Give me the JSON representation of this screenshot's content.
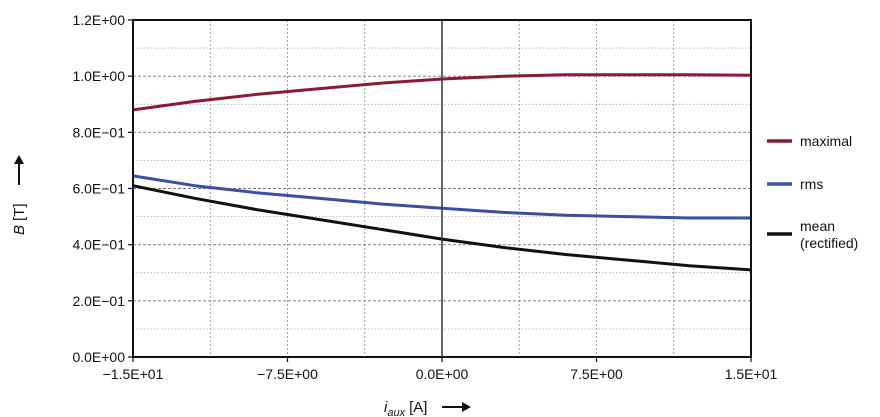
{
  "chart_data": {
    "type": "line",
    "x_ticks": [
      "−1.5E+01",
      "−7.5E+00",
      "0.0E+00",
      "7.5E+00",
      "1.5E+01"
    ],
    "y_ticks": [
      "0.0E+00",
      "2.0E−01",
      "4.0E−01",
      "6.0E−01",
      "8.0E−01",
      "1.0E+00",
      "1.2E+00"
    ],
    "xlim": [
      -15,
      15
    ],
    "ylim": [
      0,
      1.2
    ],
    "xlabel": "i",
    "xlabel_sub": "aux",
    "xlabel_unit": "[A]",
    "ylabel": "B",
    "ylabel_unit": "[T]",
    "grid": true,
    "legend_position": "right",
    "series": [
      {
        "name": "maximal",
        "color": "#8b1a35",
        "x": [
          -15,
          -12,
          -9,
          -6,
          -3,
          0,
          3,
          6,
          9,
          12,
          15
        ],
        "y": [
          0.88,
          0.91,
          0.935,
          0.955,
          0.975,
          0.99,
          1.0,
          1.005,
          1.005,
          1.005,
          1.003
        ]
      },
      {
        "name": "rms",
        "color": "#3a4fa0",
        "x": [
          -15,
          -12,
          -9,
          -6,
          -3,
          0,
          3,
          6,
          9,
          12,
          15
        ],
        "y": [
          0.645,
          0.61,
          0.585,
          0.565,
          0.545,
          0.53,
          0.515,
          0.505,
          0.5,
          0.495,
          0.495
        ]
      },
      {
        "name": "mean\n(rectified)",
        "color": "#111111",
        "x": [
          -15,
          -12,
          -9,
          -6,
          -3,
          0,
          3,
          6,
          9,
          12,
          15
        ],
        "y": [
          0.61,
          0.565,
          0.525,
          0.49,
          0.455,
          0.42,
          0.39,
          0.365,
          0.345,
          0.325,
          0.31
        ]
      }
    ]
  }
}
